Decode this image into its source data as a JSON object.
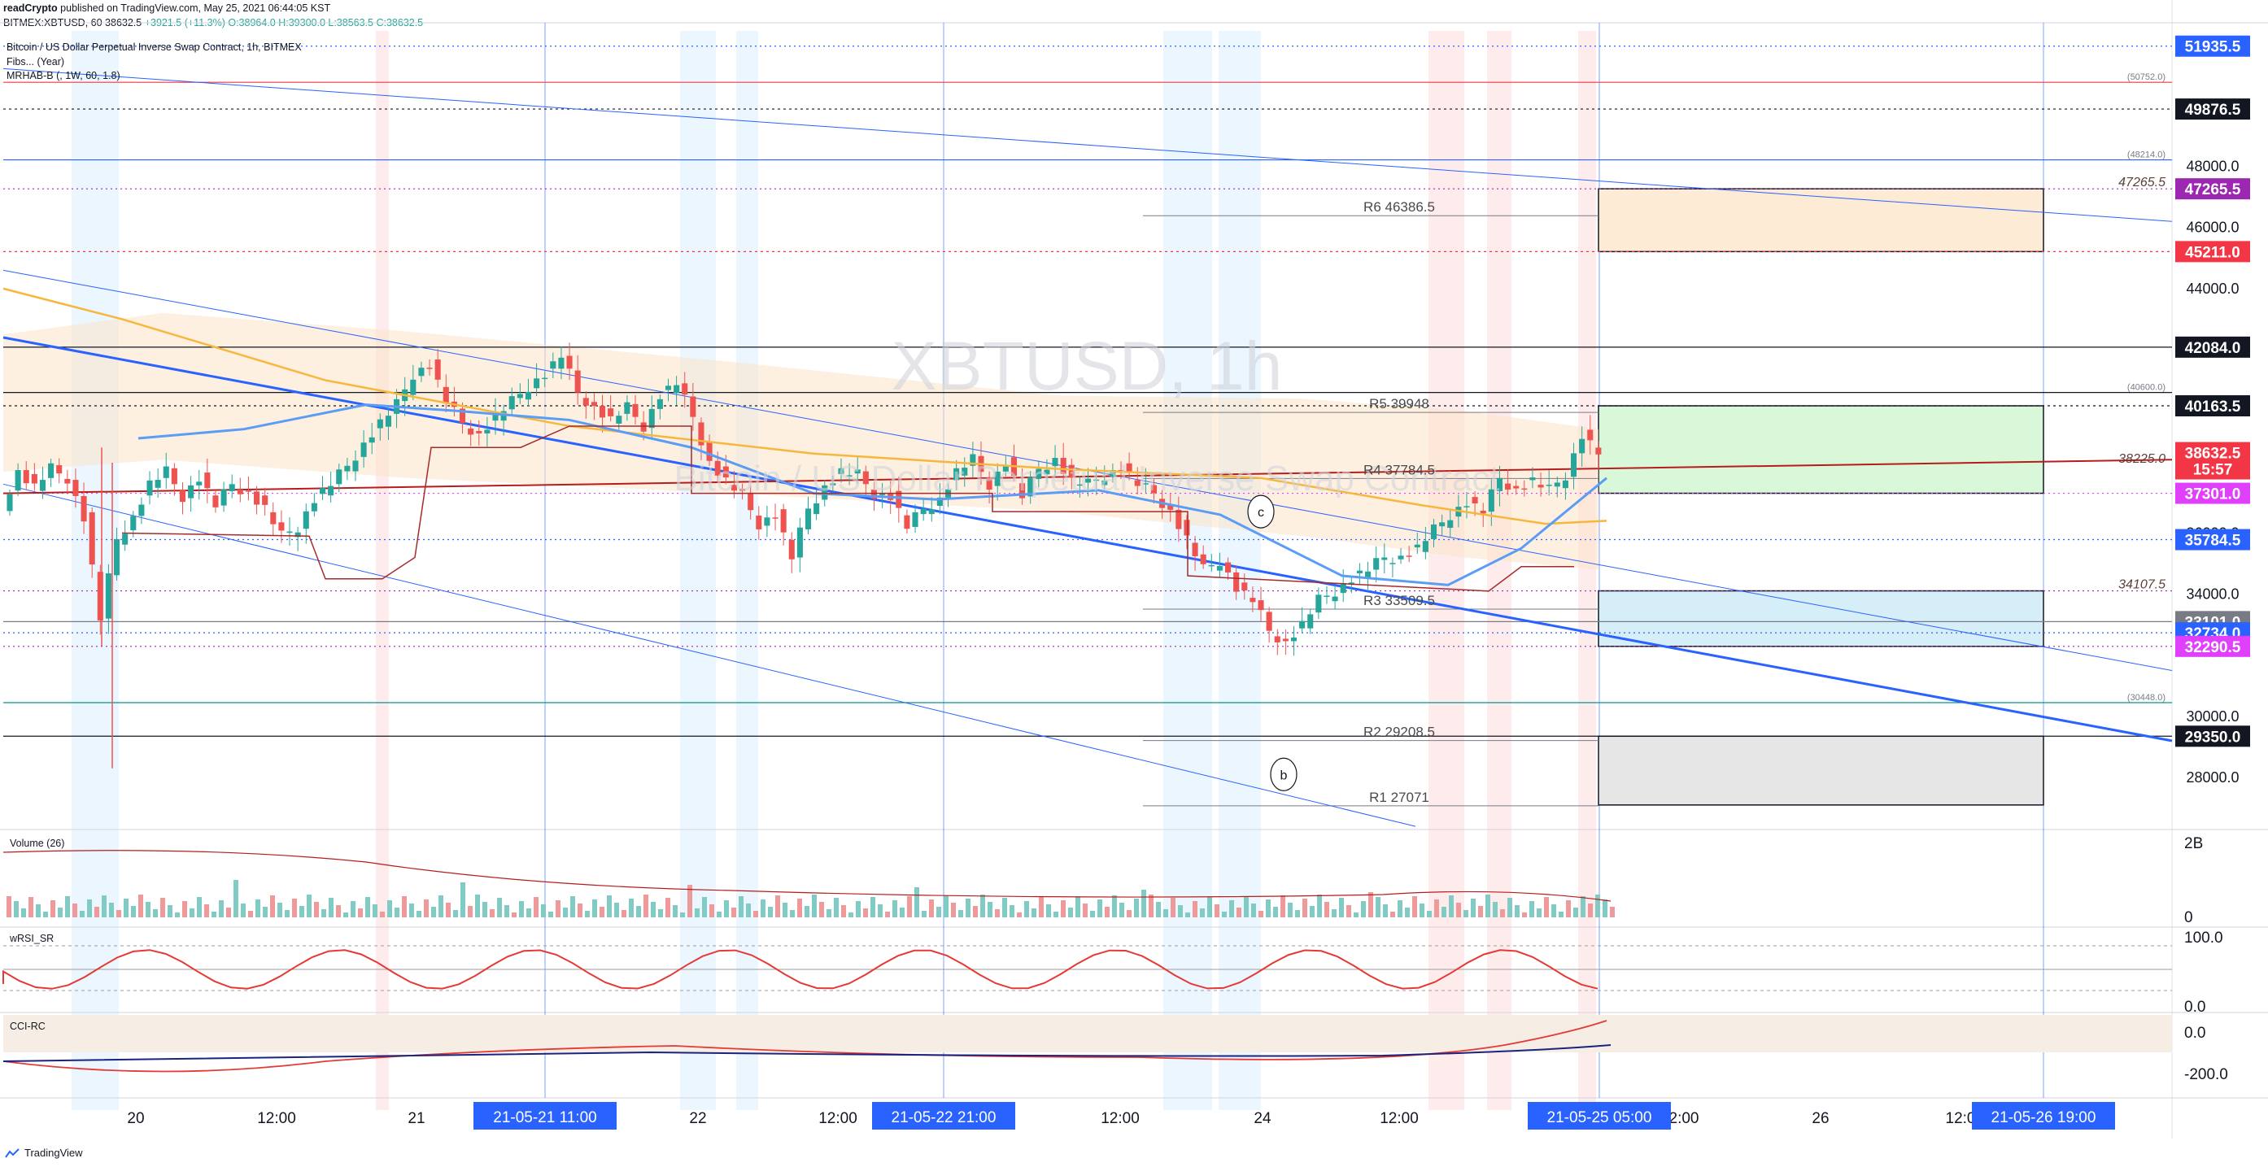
{
  "header": {
    "publisher": "readCrypto",
    "published_text": "published on TradingView.com, May 25, 2021 06:44:05 KST",
    "symbol_line": "BITMEX:XBTUSD, 60",
    "last": "38632.5",
    "change": "+3921.5 (+11.3%)",
    "ohlc": "O:38964.0 H:39300.0 L:38563.5 C:38632.5"
  },
  "chart": {
    "title": "Bitcoin / US Dollar Perpetual Inverse Swap Contract, 1h, BITMEX",
    "indicator_1": "Fibs... (Year)",
    "indicator_2": "MRHAB-B (, 1W, 60, 1.8)",
    "watermark_symbol": "XBTUSD, 1h",
    "watermark_desc": "Bitcoin / US Dollar Perpetual Inverse Swap Contract"
  },
  "chart_data": {
    "type": "candlestick",
    "price_axis_ticks": [
      "48000.0",
      "46000.0",
      "44000.0",
      "40000.0",
      "36000.0",
      "34000.0",
      "30000.0",
      "28000.0"
    ],
    "price_labels": [
      {
        "text": "51935.5",
        "value": 51935.5,
        "bg": "#2962ff"
      },
      {
        "text": "49876.5",
        "value": 49876.5,
        "bg": "#131722"
      },
      {
        "text": "47265.5",
        "value": 47265.5,
        "bg": "#9c27b0"
      },
      {
        "text": "45211.0",
        "value": 45211.0,
        "bg": "#f23645"
      },
      {
        "text": "42084.0",
        "value": 42084.0,
        "bg": "#131722"
      },
      {
        "text": "40163.5",
        "value": 40163.5,
        "bg": "#131722"
      },
      {
        "text": "38632.5",
        "value": 38632.5,
        "bg": "#f23645"
      },
      {
        "text": "15:57",
        "value": 38100,
        "bg": "#f23645"
      },
      {
        "text": "37301.0",
        "value": 37301.0,
        "bg": "#e040fb"
      },
      {
        "text": "35784.5",
        "value": 35784.5,
        "bg": "#2962ff"
      },
      {
        "text": "33101.0",
        "value": 33101.0,
        "bg": "#787b86"
      },
      {
        "text": "32734.0",
        "value": 32734.0,
        "bg": "#2962ff"
      },
      {
        "text": "32290.5",
        "value": 32290.5,
        "bg": "#e040fb"
      },
      {
        "text": "29350.0",
        "value": 29350.0,
        "bg": "#131722"
      }
    ],
    "small_labels": [
      {
        "text": "(50752.0)",
        "value": 50752.0
      },
      {
        "text": "(48214.0)",
        "value": 48214.0
      },
      {
        "text": "47265.5",
        "value": 47265.5
      },
      {
        "text": "(40600.0)",
        "value": 40600.0
      },
      {
        "text": "38225.0",
        "value": 38225.0
      },
      {
        "text": "34107.5",
        "value": 34107.5
      },
      {
        "text": "(30448.0)",
        "value": 30448.0
      }
    ],
    "pivots": [
      {
        "text": "R6  46386.5",
        "value": 46386.5
      },
      {
        "text": "R5  39948",
        "value": 39948
      },
      {
        "text": "R4  37784.5",
        "value": 37784.5
      },
      {
        "text": "R3  33509.5",
        "value": 33509.5
      },
      {
        "text": "R2  29208.5",
        "value": 29208.5
      },
      {
        "text": "R1  27071",
        "value": 27071
      }
    ],
    "horizontal_lines": [
      {
        "value": 51935.5,
        "color": "#2962ff",
        "dash": "2,4"
      },
      {
        "value": 50752.0,
        "color": "#f23645",
        "dash": ""
      },
      {
        "value": 49876.5,
        "color": "#131722",
        "dash": "3,4"
      },
      {
        "value": 48214.0,
        "color": "#2962ff",
        "dash": ""
      },
      {
        "value": 47265.5,
        "color": "#9c27b0",
        "dash": "2,4"
      },
      {
        "value": 45211.0,
        "color": "#f23645",
        "dash": "3,4"
      },
      {
        "value": 42084.0,
        "color": "#131722",
        "dash": ""
      },
      {
        "value": 40600.0,
        "color": "#131722",
        "dash": ""
      },
      {
        "value": 40163.5,
        "color": "#131722",
        "dash": "3,4"
      },
      {
        "value": 37301.0,
        "color": "#e040fb",
        "dash": "2,4"
      },
      {
        "value": 35784.5,
        "color": "#2962ff",
        "dash": "2,4"
      },
      {
        "value": 34107.5,
        "color": "#9c27b0",
        "dash": "2,4"
      },
      {
        "value": 33101.0,
        "color": "#787b86",
        "dash": ""
      },
      {
        "value": 32734.0,
        "color": "#2962ff",
        "dash": "2,4"
      },
      {
        "value": 32290.5,
        "color": "#9c27b0",
        "dash": "2,4"
      },
      {
        "value": 30448.0,
        "color": "#009688",
        "dash": ""
      },
      {
        "value": 29350.0,
        "color": "#131722",
        "dash": ""
      }
    ],
    "ohlc_path": [
      36900,
      38000,
      37500,
      38100,
      37800,
      36500,
      33200,
      35800,
      36500,
      37600,
      38000,
      37200,
      37800,
      36900,
      37600,
      37300,
      36800,
      35900,
      36200,
      37100,
      37600,
      38200,
      38900,
      39600,
      40200,
      41200,
      41500,
      40300,
      39600,
      39200,
      39800,
      40300,
      40800,
      41200,
      41800,
      40600,
      40100,
      39700,
      40100,
      39500,
      40500,
      40900,
      39800,
      38300,
      37700,
      37200,
      36300,
      36600,
      35200,
      36800,
      37500,
      38000,
      37900,
      37300,
      37200,
      36200,
      36800,
      37100,
      38000,
      38400,
      37600,
      38300,
      37200,
      38100,
      38400,
      37700,
      37600,
      37900,
      38100,
      37600,
      37300,
      36700,
      35800,
      34800,
      35100,
      34200,
      33800,
      32800,
      32400,
      33000,
      33800,
      34100,
      34500,
      34800,
      35200,
      35200,
      35500,
      36100,
      36600,
      37000,
      36700,
      37800,
      37400,
      37700,
      37400,
      37900,
      39200,
      38632
    ],
    "boxes": [
      {
        "top": 47265.5,
        "bottom": 45211.0,
        "fill": "#fdebd6"
      },
      {
        "top": 40163.5,
        "bottom": 37301.0,
        "fill": "#d9f7d9"
      },
      {
        "top": 34107.5,
        "bottom": 32290.5,
        "fill": "#d6eef7"
      },
      {
        "top": 29350.0,
        "bottom": 27100.0,
        "fill": "#e6e6e6"
      }
    ],
    "wave_labels": [
      "c",
      "b"
    ],
    "time_labels": [
      "20",
      "12:00",
      "21",
      "22",
      "12:00",
      "23",
      "12:00",
      "24",
      "12:00",
      "2:00",
      "26",
      "12:0"
    ],
    "time_highlights": [
      "21-05-21   11:00",
      "21-05-22   21:00",
      "21-05-25   05:00",
      "21-05-26   19:00"
    ]
  },
  "panes": {
    "volume": {
      "label": "Volume (26)",
      "axis": [
        "2B",
        "0"
      ]
    },
    "wrsi": {
      "label": "wRSI_SR",
      "axis": [
        "100.0",
        "0.0"
      ]
    },
    "cci": {
      "label": "CCI-RC",
      "axis": [
        "0.0",
        "-200.0"
      ]
    }
  },
  "footer": {
    "brand": "TradingView"
  },
  "colors": {
    "up": "#26a69a",
    "down": "#ef5350",
    "trend": "#2962ff",
    "box_border": "#131722"
  }
}
